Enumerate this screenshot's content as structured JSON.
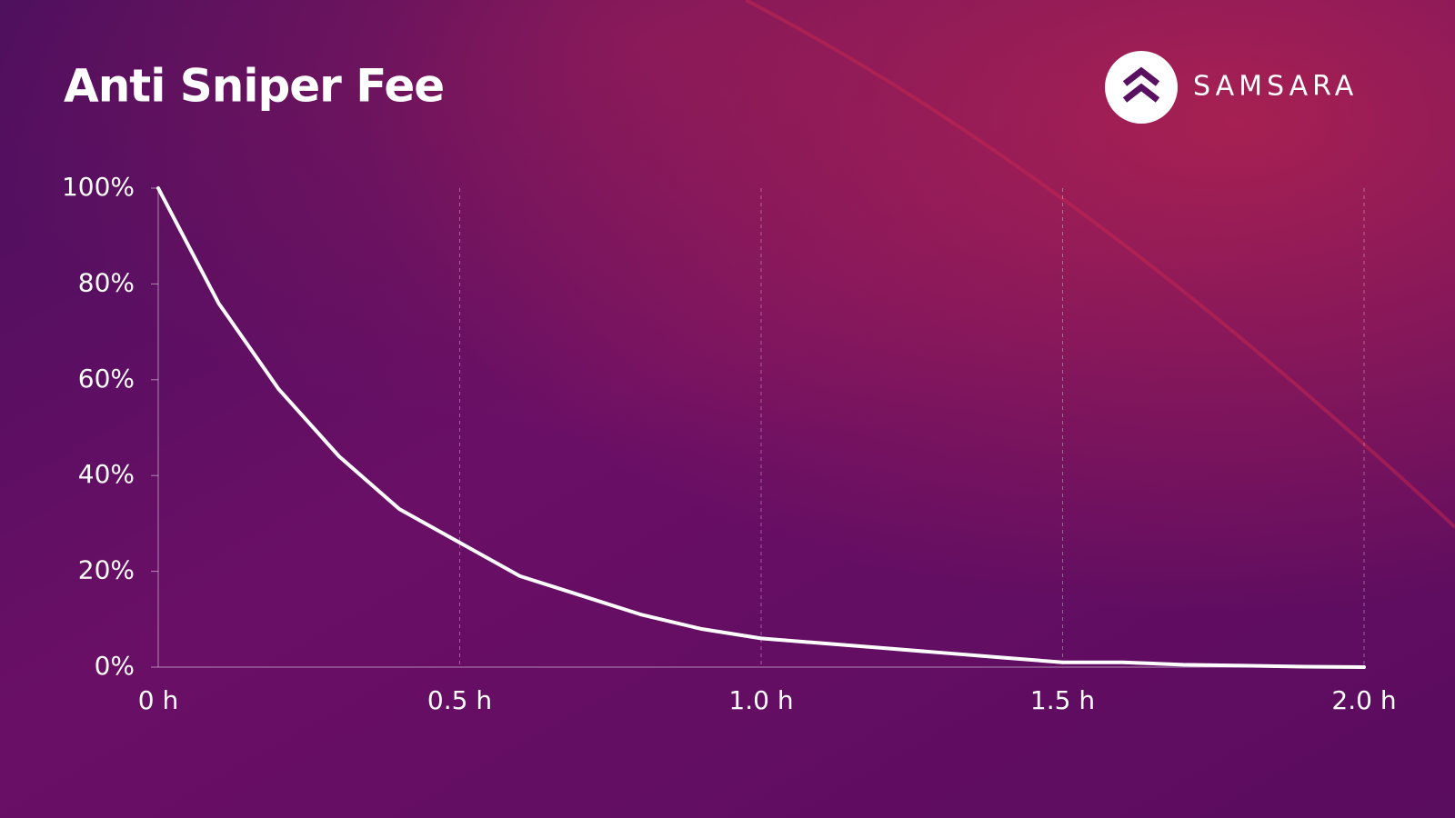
{
  "brand": "SAMSARA",
  "chart_data": {
    "type": "line",
    "title": "Anti Sniper Fee",
    "x": [
      0,
      0.1,
      0.2,
      0.3,
      0.4,
      0.5,
      0.6,
      0.7,
      0.8,
      0.9,
      1.0,
      1.1,
      1.2,
      1.3,
      1.4,
      1.5,
      1.6,
      1.7,
      1.8,
      1.9,
      2.0
    ],
    "values": [
      100,
      76,
      58,
      44,
      33,
      26,
      19,
      15,
      11,
      8,
      6,
      5,
      4,
      3,
      2,
      1,
      1,
      0.5,
      0.3,
      0.1,
      0
    ],
    "color": "#ffffff",
    "xlim": [
      0,
      2.0
    ],
    "ylim": [
      0,
      100
    ],
    "xticks": [
      {
        "value": 0,
        "label": "0 h"
      },
      {
        "value": 0.5,
        "label": "0.5 h"
      },
      {
        "value": 1.0,
        "label": "1.0 h"
      },
      {
        "value": 1.5,
        "label": "1.5 h"
      },
      {
        "value": 2.0,
        "label": "2.0 h"
      }
    ],
    "yticks": [
      {
        "value": 0,
        "label": "0%"
      },
      {
        "value": 20,
        "label": "20%"
      },
      {
        "value": 40,
        "label": "40%"
      },
      {
        "value": 60,
        "label": "60%"
      },
      {
        "value": 80,
        "label": "80%"
      },
      {
        "value": 100,
        "label": "100%"
      }
    ],
    "grid": true
  }
}
